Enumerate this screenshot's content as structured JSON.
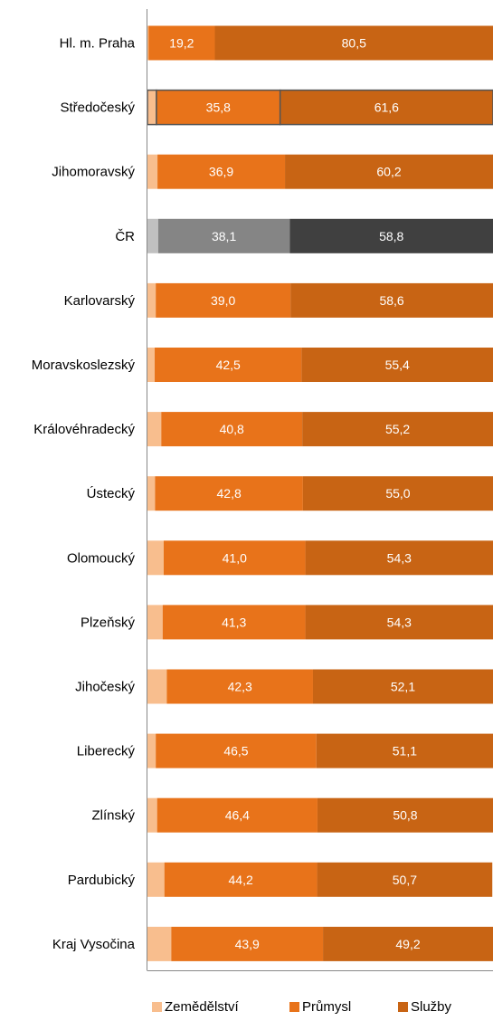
{
  "chart_data": {
    "type": "bar",
    "orientation": "horizontal",
    "stacked": true,
    "categories": [
      "Hl. m. Praha",
      "Středočeský",
      "Jihomoravský",
      "ČR",
      "Karlovarský",
      "Moravskoslezský",
      "Královéhradecký",
      "Ústecký",
      "Olomoucký",
      "Plzeňský",
      "Jihočeský",
      "Liberecký",
      "Zlínský",
      "Pardubický",
      "Kraj Vysočina"
    ],
    "series": [
      {
        "name": "Zemědělství",
        "color": "#F8BE8E",
        "values": [
          0.3,
          2.6,
          2.9,
          3.1,
          2.4,
          2.1,
          4.0,
          2.2,
          4.7,
          4.4,
          5.6,
          2.4,
          2.8,
          4.9,
          6.9
        ]
      },
      {
        "name": "Průmysl",
        "color": "#E8731A",
        "values": [
          19.2,
          35.8,
          36.9,
          38.1,
          39.0,
          42.5,
          40.8,
          42.8,
          41.0,
          41.3,
          42.3,
          46.5,
          46.4,
          44.2,
          43.9
        ]
      },
      {
        "name": "Služby",
        "color": "#C86414",
        "values": [
          80.5,
          61.6,
          60.2,
          58.8,
          58.6,
          55.4,
          55.2,
          55.0,
          54.3,
          54.3,
          52.1,
          51.1,
          50.8,
          50.7,
          49.2
        ]
      }
    ],
    "data_labels": [
      [
        "19,2",
        "80,5"
      ],
      [
        "35,8",
        "61,6"
      ],
      [
        "36,9",
        "60,2"
      ],
      [
        "38,1",
        "58,8"
      ],
      [
        "39,0",
        "58,6"
      ],
      [
        "42,5",
        "55,4"
      ],
      [
        "40,8",
        "55,2"
      ],
      [
        "42,8",
        "55,0"
      ],
      [
        "41,0",
        "54,3"
      ],
      [
        "41,3",
        "54,3"
      ],
      [
        "42,3",
        "52,1"
      ],
      [
        "46,5",
        "51,1"
      ],
      [
        "46,4",
        "50,8"
      ],
      [
        "44,2",
        "50,7"
      ],
      [
        "43,9",
        "49,2"
      ]
    ],
    "highlight": {
      "ČR": [
        "#C0C0C0",
        "#858585",
        "#404040"
      ]
    },
    "outlined_category": "Středočeský",
    "xlim": [
      0,
      100
    ],
    "legend_position": "bottom",
    "grid": false
  }
}
